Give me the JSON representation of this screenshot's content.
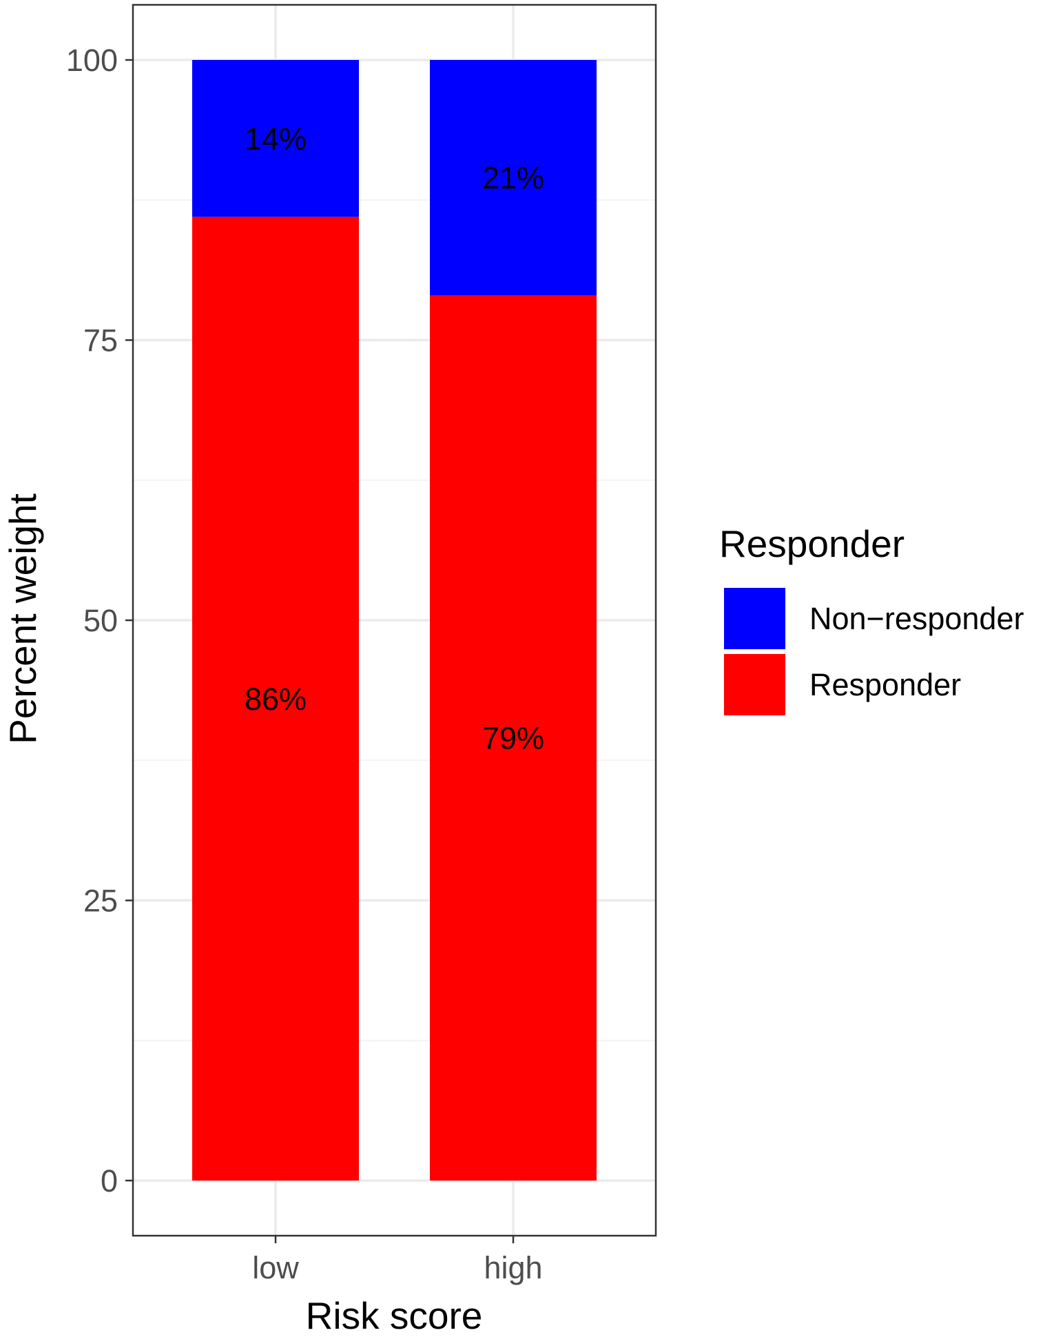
{
  "chart_data": {
    "type": "bar",
    "stacked": true,
    "categories": [
      "low",
      "high"
    ],
    "series": [
      {
        "name": "Responder",
        "color": "#ff0000",
        "values": [
          86,
          79
        ],
        "labels": [
          "86%",
          "79%"
        ]
      },
      {
        "name": "Non−responder",
        "color": "#0000ff",
        "values": [
          14,
          21
        ],
        "labels": [
          "14%",
          "21%"
        ]
      }
    ],
    "title": "",
    "xlabel": "Risk score",
    "ylabel": "Percent weight",
    "ylim": [
      -5,
      105
    ],
    "yticks": [
      0,
      25,
      50,
      75,
      100
    ],
    "y_minor_gridlines": [
      12.5,
      37.5,
      62.5,
      87.5
    ],
    "grid": true,
    "legend": {
      "title": "Responder",
      "position": "right",
      "entries": [
        {
          "label": "Non−responder",
          "color": "#0000ff"
        },
        {
          "label": "Responder",
          "color": "#ff0000"
        }
      ]
    },
    "colors": {
      "panel_border": "#333333",
      "grid_major": "#ebebeb",
      "grid_minor": "#f4f4f4",
      "tick_text": "#4d4d4d"
    }
  }
}
